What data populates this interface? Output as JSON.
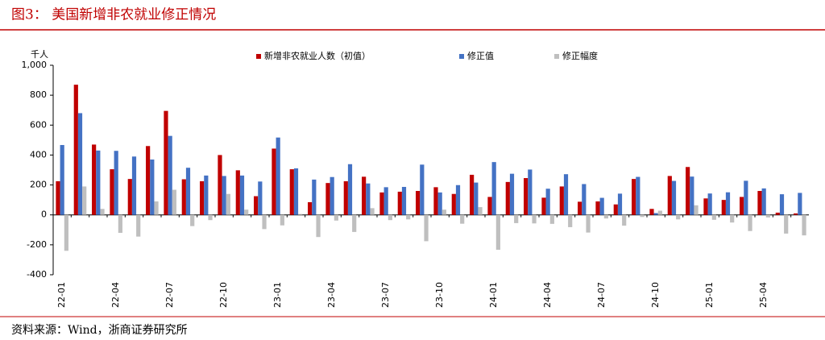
{
  "chart_data": {
    "type": "bar",
    "title": "图3：  美国新增非农就业修正情况",
    "source": "资料来源：Wind，浙商证券研究所",
    "y_label": "千人",
    "categories": [
      "22-01",
      null,
      null,
      "22-04",
      null,
      null,
      "22-07",
      null,
      null,
      "22-10",
      null,
      null,
      "23-01",
      null,
      null,
      "23-04",
      null,
      null,
      "23-07",
      null,
      null,
      "23-10",
      null,
      null,
      "24-01",
      null,
      null,
      "24-04",
      null,
      null,
      "24-07",
      null,
      null,
      "24-10",
      null,
      null,
      "25-01",
      null,
      null,
      "25-04",
      null,
      null
    ],
    "series": [
      {
        "name": "新增非农就业人数（初值）",
        "color": "#c00000",
        "values": [
          225,
          870,
          470,
          305,
          240,
          460,
          695,
          238,
          225,
          400,
          298,
          125,
          443,
          305,
          85,
          213,
          225,
          255,
          150,
          155,
          160,
          185,
          140,
          268,
          120,
          220,
          246,
          115,
          190,
          88,
          90,
          70,
          240,
          40,
          260,
          320,
          110,
          100,
          120,
          160,
          15,
          10
        ]
      },
      {
        "name": "修正值",
        "color": "#4472c4",
        "values": [
          467,
          680,
          430,
          428,
          390,
          370,
          528,
          315,
          263,
          260,
          263,
          223,
          517,
          311,
          236,
          253,
          339,
          210,
          185,
          187,
          336,
          150,
          199,
          216,
          353,
          275,
          303,
          175,
          272,
          206,
          114,
          142,
          254,
          12,
          227,
          256,
          143,
          151,
          228,
          177,
          138,
          147
        ]
      },
      {
        "name": "修正幅度",
        "color": "#bfbfbf",
        "values": [
          -240,
          190,
          40,
          -120,
          -145,
          90,
          168,
          -75,
          -35,
          140,
          35,
          -95,
          -70,
          6,
          -148,
          -38,
          -114,
          45,
          -35,
          -30,
          -176,
          35,
          -59,
          52,
          -233,
          -55,
          -57,
          -60,
          -82,
          -118,
          -24,
          -72,
          -14,
          28,
          -30,
          64,
          -33,
          -51,
          -108,
          -17,
          -125,
          -137
        ]
      }
    ],
    "ylim": [
      -400,
      1000
    ],
    "yticks": [
      -400,
      -200,
      0,
      200,
      400,
      600,
      {
        "value": 800,
        "label": "800"
      },
      {
        "value": 1000,
        "label": "1,000"
      }
    ]
  }
}
